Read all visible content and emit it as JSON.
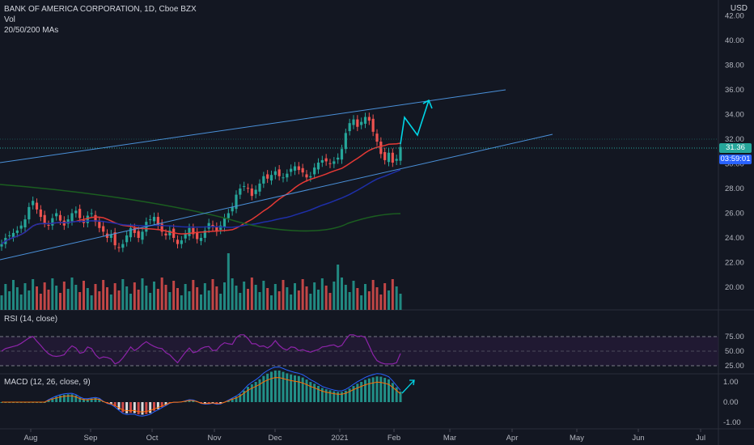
{
  "header": {
    "symbol_line": "BANK OF AMERICA CORPORATION, 1D, Cboe BZX",
    "vol_label": "Vol",
    "ma_label": "20/50/200 MAs",
    "currency": "USD"
  },
  "price_axis": {
    "ticks": [
      "42.00",
      "40.00",
      "38.00",
      "36.00",
      "34.00",
      "32.00",
      "30.00",
      "28.00",
      "26.00",
      "24.00",
      "22.00",
      "20.00"
    ],
    "last_price": "31.36",
    "countdown": "03:59:01"
  },
  "time_axis": {
    "ticks": [
      "Aug",
      "Sep",
      "Oct",
      "Nov",
      "Dec",
      "2021",
      "Feb",
      "Mar",
      "Apr",
      "May",
      "Jun",
      "Jul"
    ]
  },
  "rsi": {
    "label": "RSI (14, close)",
    "ticks": [
      "75.00",
      "50.00",
      "25.00"
    ]
  },
  "macd": {
    "label": "MACD (12, 26, close, 9)",
    "ticks": [
      "1.00",
      "0.00",
      "-1.00"
    ]
  },
  "colors": {
    "background": "#131722",
    "up": "#26a69a",
    "down": "#ef5350",
    "ma20": "#e53935",
    "ma50": "#1e2fa8",
    "ma200": "#1b5e20",
    "trendline": "#4a90d9",
    "arrow": "#00d5e6",
    "rsi_line": "#8e24aa",
    "price_tag_last": "#26a69a",
    "price_tag_timer": "#2962ff"
  },
  "chart_data": {
    "type": "candlestick",
    "title": "BANK OF AMERICA CORPORATION, 1D, Cboe BZX",
    "ylim": [
      19,
      43
    ],
    "ohlc_closes_approx": [
      23.5,
      24.0,
      24.2,
      24.4,
      24.6,
      25.0,
      25.5,
      26.5,
      27.0,
      26.3,
      25.7,
      25.2,
      25.0,
      25.6,
      26.0,
      25.4,
      25.0,
      25.5,
      26.0,
      26.2,
      25.6,
      25.2,
      25.8,
      26.0,
      25.3,
      24.8,
      24.5,
      24.0,
      24.3,
      23.4,
      23.2,
      23.5,
      24.2,
      24.8,
      24.4,
      24.0,
      24.5,
      25.3,
      25.5,
      25.7,
      25.0,
      24.5,
      24.2,
      24.6,
      24.0,
      23.5,
      23.8,
      24.3,
      24.8,
      24.3,
      23.9,
      24.0,
      24.6,
      25.2,
      24.9,
      24.5,
      25.0,
      25.6,
      26.0,
      26.5,
      27.5,
      28.0,
      28.2,
      28.0,
      27.4,
      27.9,
      28.4,
      29.0,
      28.8,
      29.1,
      29.4,
      29.0,
      28.9,
      29.2,
      29.6,
      29.8,
      29.5,
      29.3,
      28.9,
      29.0,
      29.7,
      30.1,
      30.3,
      30.2,
      30.0,
      30.2,
      30.5,
      31.2,
      32.5,
      33.3,
      33.6,
      33.0,
      33.4,
      33.8,
      33.5,
      32.6,
      31.8,
      30.8,
      30.3,
      30.9,
      30.1,
      30.4,
      31.36
    ],
    "forecast_path": [
      [
        31.36,
        "Feb"
      ],
      [
        33.8,
        ""
      ],
      [
        32.6,
        ""
      ],
      [
        35.0,
        ""
      ]
    ],
    "moving_averages": [
      "20",
      "50",
      "200"
    ],
    "rsi_levels": [
      75,
      50,
      25
    ],
    "macd_range": [
      -1,
      1
    ]
  }
}
